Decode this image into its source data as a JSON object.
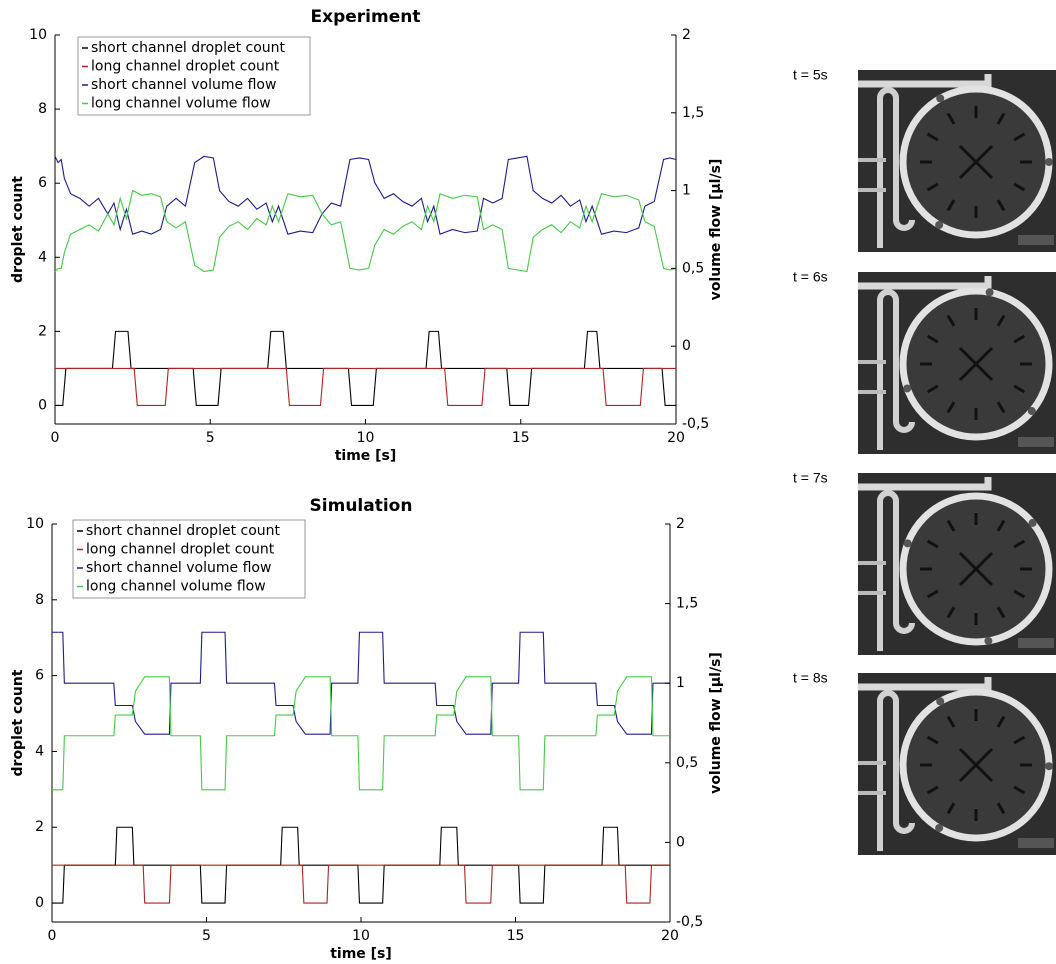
{
  "chart_data": [
    {
      "type": "line",
      "title": "Experiment",
      "xlabel": "time [s]",
      "ylabel": "droplet count",
      "y2label": "volume flow [µl/s]",
      "xlim": [
        0,
        20
      ],
      "xticks": [
        0,
        5,
        10,
        15,
        20
      ],
      "ylim": [
        -0.5,
        10
      ],
      "yticks": [
        0,
        2,
        4,
        6,
        8,
        10
      ],
      "y2lim": [
        -0.5,
        2
      ],
      "y2ticks": [
        {
          "value": -0.5,
          "label": "-0,5"
        },
        0,
        {
          "value": 0.5,
          "label": "0,5"
        },
        1,
        {
          "value": 1.5,
          "label": "1,5"
        },
        2
      ],
      "legend": "upper left",
      "series": [
        {
          "name": "short channel droplet count",
          "color": "#000000",
          "x": [
            0,
            0.25,
            0.35,
            1.85,
            1.95,
            2.35,
            2.45,
            4.45,
            4.55,
            5.25,
            5.35,
            6.85,
            6.95,
            7.35,
            7.45,
            9.45,
            9.55,
            10.25,
            10.35,
            11.95,
            12.05,
            12.35,
            12.45,
            14.55,
            14.65,
            15.25,
            15.35,
            17.05,
            17.15,
            17.45,
            17.55,
            19.55,
            19.65,
            20
          ],
          "values": [
            0,
            0,
            1,
            1,
            2,
            2,
            1,
            1,
            0,
            0,
            1,
            1,
            2,
            2,
            1,
            1,
            0,
            0,
            1,
            1,
            2,
            2,
            1,
            1,
            0,
            0,
            1,
            1,
            2,
            2,
            1,
            1,
            0,
            0
          ]
        },
        {
          "name": "long  channel droplet count",
          "color": "#b22222",
          "x": [
            0,
            2.55,
            2.65,
            3.55,
            3.65,
            7.45,
            7.55,
            8.55,
            8.65,
            12.55,
            12.65,
            13.75,
            13.85,
            17.65,
            17.75,
            18.85,
            18.95,
            20
          ],
          "values": [
            1,
            1,
            0,
            0,
            1,
            1,
            0,
            0,
            1,
            1,
            0,
            0,
            1,
            1,
            0,
            0,
            1,
            1
          ]
        },
        {
          "name": "short channel volume flow",
          "color": "#1c1c8c",
          "axis": "y2",
          "x": [
            0,
            0.1,
            0.2,
            0.3,
            0.5,
            0.8,
            1.1,
            1.4,
            1.7,
            1.9,
            2.1,
            2.3,
            2.5,
            2.8,
            3.1,
            3.4,
            3.6,
            3.9,
            4.2,
            4.5,
            4.8,
            5.1,
            5.3,
            5.6,
            5.9,
            6.2,
            6.5,
            6.8,
            7.0,
            7.2,
            7.5,
            7.9,
            8.3,
            8.6,
            8.9,
            9.2,
            9.5,
            9.8,
            10.1,
            10.3,
            10.6,
            10.9,
            11.2,
            11.5,
            11.8,
            12.0,
            12.2,
            12.4,
            12.8,
            13.2,
            13.6,
            13.8,
            14.1,
            14.4,
            14.6,
            14.9,
            15.2,
            15.4,
            15.7,
            16.0,
            16.3,
            16.6,
            16.9,
            17.1,
            17.3,
            17.6,
            18.0,
            18.4,
            18.8,
            19.0,
            19.3,
            19.6,
            19.8,
            20
          ],
          "values": [
            1.22,
            1.18,
            1.2,
            1.08,
            0.98,
            0.95,
            0.9,
            0.95,
            0.85,
            0.92,
            0.75,
            0.88,
            0.72,
            0.74,
            0.72,
            0.75,
            0.9,
            0.95,
            0.9,
            1.18,
            1.22,
            1.21,
            1.0,
            0.93,
            0.9,
            0.95,
            0.88,
            0.92,
            0.8,
            0.9,
            0.72,
            0.74,
            0.73,
            0.85,
            0.92,
            0.9,
            1.2,
            1.21,
            1.2,
            1.05,
            0.95,
            0.98,
            0.93,
            0.9,
            0.95,
            0.8,
            0.9,
            0.72,
            0.75,
            0.73,
            0.74,
            0.95,
            0.92,
            0.95,
            1.2,
            1.21,
            1.22,
            1.0,
            0.95,
            0.92,
            0.97,
            0.9,
            0.94,
            0.8,
            0.9,
            0.72,
            0.74,
            0.73,
            0.76,
            0.9,
            0.93,
            1.2,
            1.21,
            1.2
          ]
        },
        {
          "name": "long  channel volume flow",
          "color": "#44cc44",
          "axis": "y2",
          "x": [
            0,
            0.1,
            0.2,
            0.3,
            0.5,
            0.8,
            1.1,
            1.4,
            1.7,
            1.9,
            2.1,
            2.3,
            2.5,
            2.8,
            3.1,
            3.4,
            3.6,
            3.9,
            4.2,
            4.5,
            4.8,
            5.1,
            5.3,
            5.6,
            5.9,
            6.2,
            6.5,
            6.8,
            7.0,
            7.2,
            7.5,
            7.9,
            8.3,
            8.6,
            8.9,
            9.2,
            9.5,
            9.8,
            10.1,
            10.3,
            10.6,
            10.9,
            11.2,
            11.5,
            11.8,
            12.0,
            12.2,
            12.4,
            12.8,
            13.2,
            13.6,
            13.8,
            14.1,
            14.4,
            14.6,
            14.9,
            15.2,
            15.4,
            15.7,
            16.0,
            16.3,
            16.6,
            16.9,
            17.1,
            17.3,
            17.6,
            18.0,
            18.4,
            18.8,
            19.0,
            19.3,
            19.6,
            19.8,
            20
          ],
          "values": [
            0.48,
            0.5,
            0.5,
            0.6,
            0.72,
            0.75,
            0.78,
            0.74,
            0.85,
            0.78,
            0.95,
            0.82,
            1.0,
            0.97,
            0.98,
            0.96,
            0.8,
            0.76,
            0.8,
            0.52,
            0.48,
            0.49,
            0.7,
            0.77,
            0.8,
            0.75,
            0.82,
            0.78,
            0.9,
            0.8,
            0.98,
            0.96,
            0.97,
            0.85,
            0.78,
            0.8,
            0.5,
            0.49,
            0.5,
            0.65,
            0.75,
            0.72,
            0.77,
            0.8,
            0.75,
            0.9,
            0.8,
            0.98,
            0.95,
            0.97,
            0.96,
            0.75,
            0.78,
            0.75,
            0.5,
            0.49,
            0.48,
            0.7,
            0.75,
            0.78,
            0.73,
            0.8,
            0.76,
            0.9,
            0.8,
            0.98,
            0.96,
            0.97,
            0.94,
            0.8,
            0.77,
            0.5,
            0.49,
            0.5
          ]
        }
      ]
    },
    {
      "type": "line",
      "title": "Simulation",
      "xlabel": "time [s]",
      "ylabel": "droplet count",
      "y2label": "volume flow [µl/s]",
      "xlim": [
        0,
        20
      ],
      "xticks": [
        0,
        5,
        10,
        15,
        20
      ],
      "ylim": [
        -0.5,
        10
      ],
      "yticks": [
        0,
        2,
        4,
        6,
        8,
        10
      ],
      "y2lim": [
        -0.5,
        2
      ],
      "y2ticks": [
        {
          "value": -0.5,
          "label": "-0,5"
        },
        0,
        {
          "value": 0.5,
          "label": "0,5"
        },
        1,
        {
          "value": 1.5,
          "label": "1,5"
        },
        2
      ],
      "legend": "upper left",
      "series": [
        {
          "name": "short channel droplet count",
          "color": "#000000",
          "x": [
            0,
            0.35,
            0.4,
            2.05,
            2.1,
            2.6,
            2.65,
            4.8,
            4.85,
            5.6,
            5.65,
            7.4,
            7.45,
            7.95,
            8.0,
            9.9,
            9.95,
            10.7,
            10.75,
            12.55,
            12.6,
            13.1,
            13.15,
            15.1,
            15.15,
            15.9,
            15.95,
            17.8,
            17.85,
            18.3,
            18.35,
            20
          ],
          "values": [
            0,
            0,
            1,
            1,
            2,
            2,
            1,
            1,
            0,
            0,
            1,
            1,
            2,
            2,
            1,
            1,
            0,
            0,
            1,
            1,
            2,
            2,
            1,
            1,
            0,
            0,
            1,
            1,
            2,
            2,
            1,
            1
          ]
        },
        {
          "name": "long  channel droplet count",
          "color": "#b22222",
          "x": [
            0,
            2.95,
            3.0,
            3.8,
            3.85,
            8.1,
            8.15,
            8.9,
            8.95,
            13.35,
            13.4,
            14.2,
            14.25,
            18.55,
            18.6,
            19.35,
            19.4,
            20
          ],
          "values": [
            1,
            1,
            0,
            0,
            1,
            1,
            0,
            0,
            1,
            1,
            0,
            0,
            1,
            1,
            0,
            0,
            1,
            1
          ]
        },
        {
          "name": "short channel volume flow",
          "color": "#1c1c8c",
          "axis": "y2",
          "x": [
            0,
            0.35,
            0.4,
            2.0,
            2.05,
            2.6,
            2.7,
            3.0,
            3.8,
            3.85,
            4.8,
            4.85,
            5.6,
            5.65,
            7.2,
            7.25,
            7.8,
            7.9,
            8.2,
            9.0,
            9.05,
            9.9,
            9.95,
            10.7,
            10.75,
            12.4,
            12.45,
            13.0,
            13.1,
            13.4,
            14.2,
            14.25,
            15.1,
            15.15,
            15.9,
            15.95,
            17.6,
            17.65,
            18.2,
            18.3,
            18.6,
            19.4,
            19.45,
            20
          ],
          "values": [
            1.32,
            1.32,
            1.0,
            1.0,
            0.86,
            0.86,
            0.76,
            0.68,
            0.68,
            1.0,
            1.0,
            1.32,
            1.32,
            1.0,
            1.0,
            0.86,
            0.86,
            0.76,
            0.68,
            0.68,
            1.0,
            1.0,
            1.32,
            1.32,
            1.0,
            1.0,
            0.86,
            0.86,
            0.76,
            0.68,
            0.68,
            1.0,
            1.0,
            1.32,
            1.32,
            1.0,
            1.0,
            0.86,
            0.86,
            0.76,
            0.68,
            0.68,
            1.0,
            1.0
          ]
        },
        {
          "name": "long  channel volume flow",
          "color": "#44cc44",
          "axis": "y2",
          "x": [
            0,
            0.35,
            0.4,
            2.0,
            2.05,
            2.6,
            2.7,
            3.0,
            3.8,
            3.85,
            4.8,
            4.85,
            5.6,
            5.65,
            7.2,
            7.25,
            7.8,
            7.9,
            8.2,
            9.0,
            9.05,
            9.9,
            9.95,
            10.7,
            10.75,
            12.4,
            12.45,
            13.0,
            13.1,
            13.4,
            14.2,
            14.25,
            15.1,
            15.15,
            15.9,
            15.95,
            17.6,
            17.65,
            18.2,
            18.3,
            18.6,
            19.4,
            19.45,
            20
          ],
          "values": [
            0.33,
            0.33,
            0.67,
            0.67,
            0.8,
            0.8,
            0.95,
            1.04,
            1.04,
            0.67,
            0.67,
            0.33,
            0.33,
            0.67,
            0.67,
            0.8,
            0.8,
            0.95,
            1.04,
            1.04,
            0.67,
            0.67,
            0.33,
            0.33,
            0.67,
            0.67,
            0.8,
            0.8,
            0.95,
            1.04,
            1.04,
            0.67,
            0.67,
            0.33,
            0.33,
            0.67,
            0.67,
            0.8,
            0.8,
            0.95,
            1.04,
            1.04,
            0.67,
            0.67
          ]
        }
      ]
    }
  ],
  "images": [
    {
      "label": "t = 5s"
    },
    {
      "label": "t = 6s"
    },
    {
      "label": "t = 7s"
    },
    {
      "label": "t = 8s"
    }
  ]
}
